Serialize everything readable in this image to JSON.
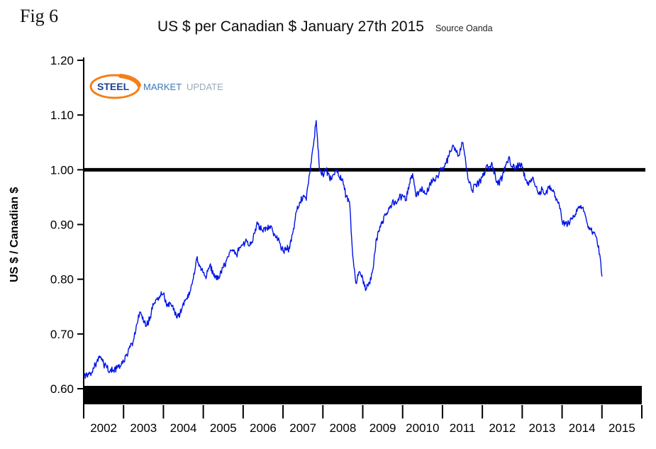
{
  "figure": {
    "fig_label": "Fig 6",
    "title": "US $ per Canadian $  January 27th 2015",
    "source": "Source Oanda"
  },
  "logo": {
    "steel": "STEEL",
    "market": "MARKET",
    "update": "UPDATE",
    "swoosh_color": "#f57f17"
  },
  "chart_data": {
    "type": "line",
    "title": "US $ per Canadian $ January 27th 2015",
    "source": "Oanda",
    "ylabel": "US $ / Canadian $",
    "ylim": [
      0.6,
      1.2
    ],
    "ytick_labels": [
      "1.20",
      "1.10",
      "1.00",
      "0.90",
      "0.80",
      "0.70",
      "0.60"
    ],
    "x_tick_labels": [
      "2002",
      "2003",
      "2004",
      "2005",
      "2006",
      "2007",
      "2008",
      "2009",
      "20010",
      "2011",
      "2012",
      "2013",
      "2014",
      "2015"
    ],
    "reference_line": 1.0,
    "line_color": "#0013e6",
    "axis_color": "#000000",
    "legend": "none",
    "grid": "off",
    "series_name": "US $ per Canadian $",
    "series_monthly": {
      "2002": [
        0.627,
        0.623,
        0.629,
        0.637,
        0.65,
        0.657,
        0.645,
        0.638,
        0.633,
        0.634,
        0.637,
        0.641
      ],
      "2003": [
        0.65,
        0.661,
        0.676,
        0.689,
        0.718,
        0.74,
        0.722,
        0.716,
        0.731,
        0.753,
        0.763,
        0.77
      ],
      "2004": [
        0.773,
        0.75,
        0.757,
        0.744,
        0.729,
        0.737,
        0.757,
        0.765,
        0.777,
        0.801,
        0.838,
        0.823
      ],
      "2005": [
        0.812,
        0.806,
        0.826,
        0.811,
        0.799,
        0.806,
        0.821,
        0.834,
        0.849,
        0.851,
        0.845,
        0.858
      ],
      "2006": [
        0.864,
        0.871,
        0.861,
        0.874,
        0.899,
        0.896,
        0.886,
        0.894,
        0.897,
        0.886,
        0.876,
        0.866
      ],
      "2007": [
        0.851,
        0.856,
        0.856,
        0.886,
        0.923,
        0.941,
        0.951,
        0.944,
        0.992,
        1.04,
        1.09,
        0.998
      ],
      "2008": [
        0.992,
        1.001,
        0.984,
        0.99,
        1.0,
        0.986,
        0.981,
        0.951,
        0.942,
        0.843,
        0.792,
        0.814
      ],
      "2009": [
        0.801,
        0.781,
        0.792,
        0.817,
        0.872,
        0.888,
        0.906,
        0.917,
        0.929,
        0.944,
        0.938,
        0.949
      ],
      "2010": [
        0.953,
        0.944,
        0.974,
        0.993,
        0.951,
        0.961,
        0.964,
        0.956,
        0.969,
        0.979,
        0.984,
        0.994
      ],
      "2011": [
        1.004,
        1.011,
        1.026,
        1.044,
        1.034,
        1.026,
        1.049,
        1.014,
        0.976,
        0.962,
        0.974,
        0.976
      ],
      "2012": [
        0.986,
        1.001,
        1.006,
        1.009,
        0.984,
        0.976,
        0.986,
        1.009,
        1.024,
        1.006,
        1.001,
        1.009
      ],
      "2013": [
        1.004,
        0.981,
        0.974,
        0.984,
        0.969,
        0.956,
        0.964,
        0.956,
        0.969,
        0.961,
        0.951,
        0.941
      ],
      "2014": [
        0.906,
        0.901,
        0.904,
        0.911,
        0.919,
        0.933,
        0.931,
        0.916,
        0.896,
        0.886,
        0.881,
        0.861
      ],
      "2015": [
        0.805
      ]
    }
  }
}
